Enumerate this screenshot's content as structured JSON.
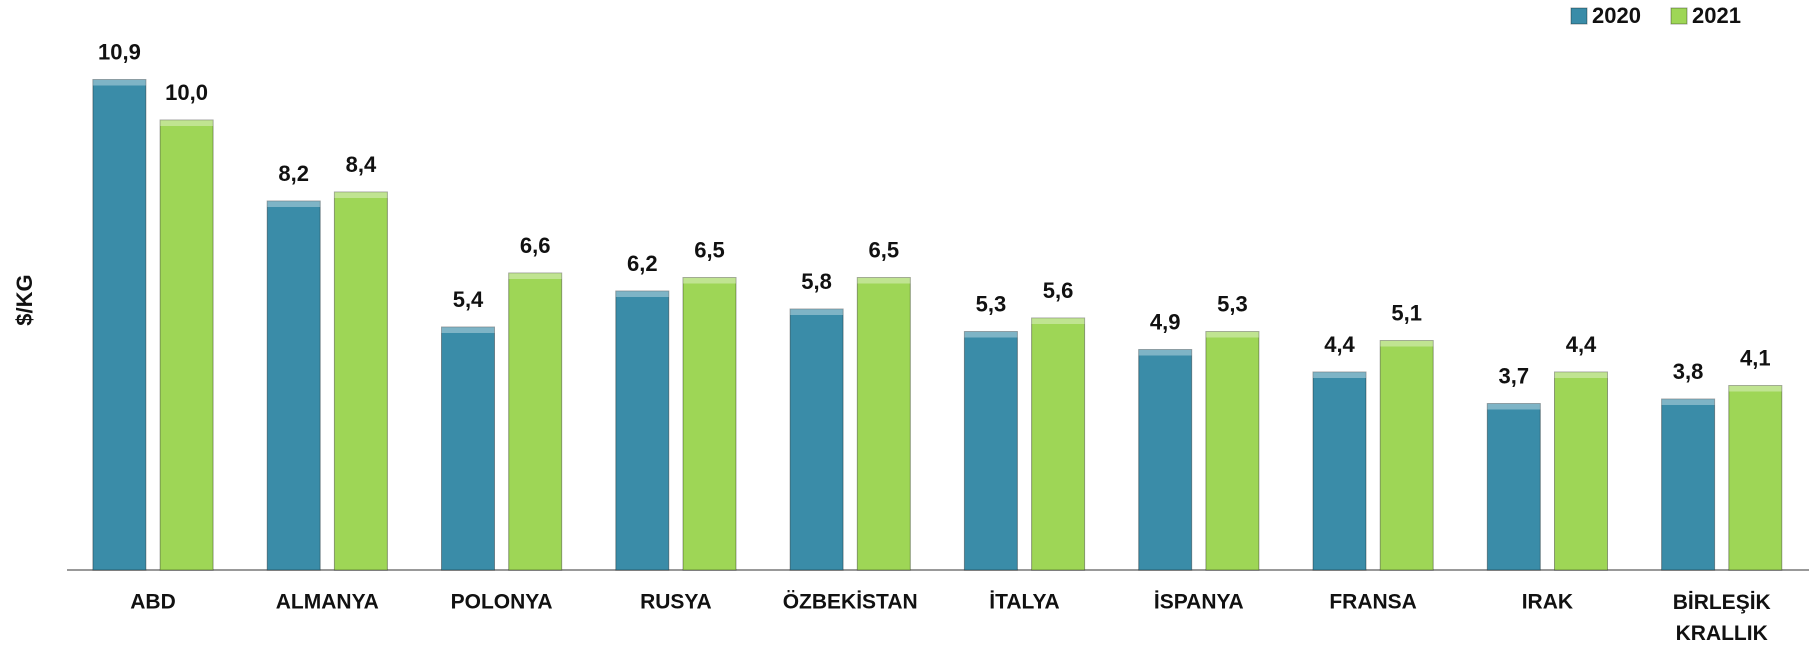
{
  "chart_data": {
    "type": "bar",
    "y_label": "$/KG",
    "categories": [
      "ABD",
      "ALMANYA",
      "POLONYA",
      "RUSYA",
      "ÖZBEKİSTAN",
      "İTALYA",
      "İSPANYA",
      "FRANSA",
      "IRAK",
      "BİRLEŞİK KRALLIK"
    ],
    "series": [
      {
        "name": "2020",
        "color": "#3a8ca8",
        "values": [
          10.9,
          8.2,
          5.4,
          6.2,
          5.8,
          5.3,
          4.9,
          4.4,
          3.7,
          3.8
        ],
        "value_labels": [
          "10,9",
          "8,2",
          "5,4",
          "6,2",
          "5,8",
          "5,3",
          "4,9",
          "4,4",
          "3,7",
          "3,8"
        ]
      },
      {
        "name": "2021",
        "color": "#9ed656",
        "values": [
          10.0,
          8.4,
          6.6,
          6.5,
          6.5,
          5.6,
          5.3,
          5.1,
          4.4,
          4.1
        ],
        "value_labels": [
          "10,0",
          "8,4",
          "6,6",
          "6,5",
          "6,5",
          "5,6",
          "5,3",
          "5,1",
          "4,4",
          "4,1"
        ]
      }
    ],
    "ylim": [
      0,
      12
    ],
    "legend": "top-right"
  }
}
